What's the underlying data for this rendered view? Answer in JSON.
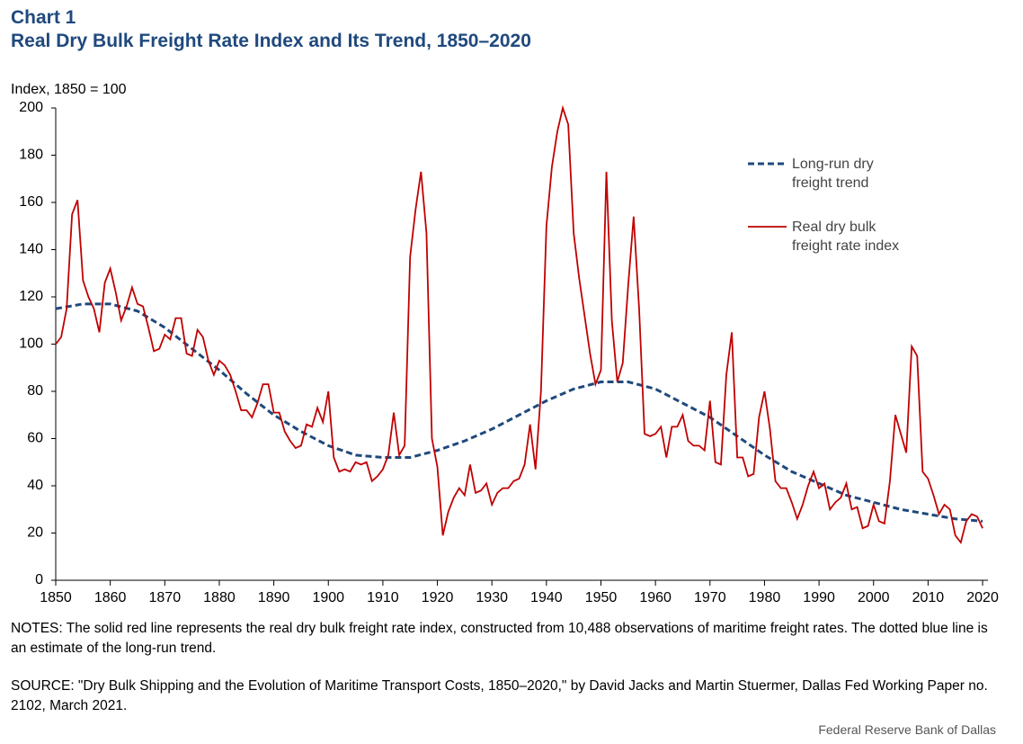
{
  "chart_data": {
    "type": "line",
    "title": "Chart 1",
    "subtitle": "Real Dry Bulk Freight Rate Index and Its Trend, 1850–2020",
    "y_label": "Index, 1850 = 100",
    "notes": "NOTES: The solid red line represents the real dry bulk freight rate index, constructed from 10,488 observations of maritime freight rates. The dotted blue line is an estimate of the long-run trend.",
    "source": "SOURCE: \"Dry Bulk Shipping and the Evolution of Maritime Transport Costs, 1850–2020,\" by David Jacks and Martin Stuermer, Dallas Fed Working Paper no. 2102, March 2021.",
    "credit": "Federal Reserve Bank of Dallas",
    "xlim": [
      1850,
      2021
    ],
    "xticks": [
      1850,
      1860,
      1870,
      1880,
      1890,
      1900,
      1910,
      1920,
      1930,
      1940,
      1950,
      1960,
      1970,
      1980,
      1990,
      2000,
      2010,
      2020
    ],
    "ylim": [
      0,
      200
    ],
    "yticks": [
      0,
      20,
      40,
      60,
      80,
      100,
      120,
      140,
      160,
      180,
      200
    ],
    "grid": false,
    "series": [
      {
        "name": "Long-run dry freight trend",
        "color": "#1f497d",
        "dashed": true,
        "x": [
          1850,
          1855,
          1860,
          1865,
          1870,
          1875,
          1880,
          1885,
          1890,
          1895,
          1900,
          1905,
          1910,
          1915,
          1920,
          1925,
          1930,
          1935,
          1940,
          1945,
          1950,
          1955,
          1960,
          1965,
          1970,
          1975,
          1980,
          1985,
          1990,
          1995,
          2000,
          2005,
          2010,
          2015,
          2020
        ],
        "values": [
          115,
          117,
          117,
          114,
          107,
          98,
          89,
          79,
          70,
          63,
          57,
          53,
          52,
          52,
          55,
          59,
          64,
          70,
          76,
          81,
          84,
          84,
          81,
          75,
          69,
          61,
          53,
          46,
          41,
          36,
          33,
          30,
          28,
          26,
          25
        ]
      },
      {
        "name": "Real dry bulk freight rate index",
        "color": "#c00000",
        "dashed": false,
        "x": [
          1850,
          1851,
          1852,
          1853,
          1854,
          1855,
          1856,
          1857,
          1858,
          1859,
          1860,
          1861,
          1862,
          1863,
          1864,
          1865,
          1866,
          1867,
          1868,
          1869,
          1870,
          1871,
          1872,
          1873,
          1874,
          1875,
          1876,
          1877,
          1878,
          1879,
          1880,
          1881,
          1882,
          1883,
          1884,
          1885,
          1886,
          1887,
          1888,
          1889,
          1890,
          1891,
          1892,
          1893,
          1894,
          1895,
          1896,
          1897,
          1898,
          1899,
          1900,
          1901,
          1902,
          1903,
          1904,
          1905,
          1906,
          1907,
          1908,
          1909,
          1910,
          1911,
          1912,
          1913,
          1914,
          1915,
          1916,
          1917,
          1918,
          1919,
          1920,
          1921,
          1922,
          1923,
          1924,
          1925,
          1926,
          1927,
          1928,
          1929,
          1930,
          1931,
          1932,
          1933,
          1934,
          1935,
          1936,
          1937,
          1938,
          1939,
          1940,
          1941,
          1942,
          1943,
          1944,
          1945,
          1946,
          1947,
          1948,
          1949,
          1950,
          1951,
          1952,
          1953,
          1954,
          1955,
          1956,
          1957,
          1958,
          1959,
          1960,
          1961,
          1962,
          1963,
          1964,
          1965,
          1966,
          1967,
          1968,
          1969,
          1970,
          1971,
          1972,
          1973,
          1974,
          1975,
          1976,
          1977,
          1978,
          1979,
          1980,
          1981,
          1982,
          1983,
          1984,
          1985,
          1986,
          1987,
          1988,
          1989,
          1990,
          1991,
          1992,
          1993,
          1994,
          1995,
          1996,
          1997,
          1998,
          1999,
          2000,
          2001,
          2002,
          2003,
          2004,
          2005,
          2006,
          2007,
          2008,
          2009,
          2010,
          2011,
          2012,
          2013,
          2014,
          2015,
          2016,
          2017,
          2018,
          2019,
          2020
        ],
        "values": [
          100,
          103,
          115,
          155,
          161,
          127,
          120,
          115,
          105,
          126,
          132,
          122,
          110,
          116,
          124,
          117,
          116,
          107,
          97,
          98,
          104,
          102,
          111,
          111,
          96,
          95,
          106,
          103,
          93,
          87,
          93,
          91,
          87,
          80,
          72,
          72,
          69,
          75,
          83,
          83,
          71,
          71,
          63,
          59,
          56,
          57,
          66,
          65,
          73,
          67,
          80,
          52,
          46,
          47,
          46,
          50,
          49,
          50,
          42,
          44,
          47,
          53,
          71,
          53,
          57,
          137,
          157,
          173,
          147,
          60,
          48,
          19,
          29,
          35,
          39,
          36,
          49,
          37,
          38,
          41,
          32,
          37,
          39,
          39,
          42,
          43,
          49,
          66,
          47,
          80,
          150,
          175,
          190,
          200,
          193,
          147,
          128,
          112,
          96,
          83,
          89,
          173,
          110,
          84,
          92,
          125,
          154,
          115,
          62,
          61,
          62,
          65,
          52,
          65,
          65,
          70,
          59,
          57,
          57,
          55,
          76,
          50,
          49,
          87,
          105,
          52,
          52,
          44,
          45,
          69,
          80,
          64,
          42,
          39,
          39,
          33,
          26,
          32,
          40,
          46,
          39,
          41,
          30,
          33,
          35,
          41,
          30,
          31,
          22,
          23,
          32,
          25,
          24,
          42,
          70,
          62,
          54,
          99,
          95,
          46,
          43,
          36,
          28,
          32,
          30,
          19,
          16,
          25,
          28,
          27,
          22
        ]
      }
    ]
  }
}
